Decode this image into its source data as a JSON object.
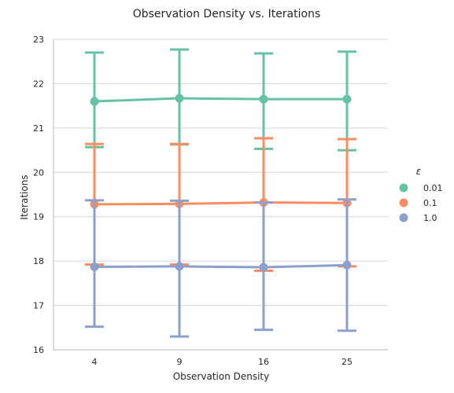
{
  "chart_data": {
    "type": "line",
    "title": "Observation Density vs. Iterations",
    "xlabel": "Observation Density",
    "ylabel": "Iterations",
    "categories": [
      "4",
      "9",
      "16",
      "25"
    ],
    "ylim": [
      16,
      23
    ],
    "yticks": [
      16,
      17,
      18,
      19,
      20,
      21,
      22,
      23
    ],
    "grid": "horizontal",
    "legend": {
      "title": "ε",
      "placement": "right"
    },
    "series": [
      {
        "name": "0.01",
        "color": "#66c2a5",
        "values": [
          21.6,
          21.67,
          21.65,
          21.65
        ],
        "err_low": [
          20.57,
          20.63,
          20.53,
          20.5
        ],
        "err_high": [
          22.7,
          22.77,
          22.68,
          22.72
        ]
      },
      {
        "name": "0.1",
        "color": "#fc8d62",
        "values": [
          19.28,
          19.29,
          19.32,
          19.31
        ],
        "err_low": [
          17.92,
          17.92,
          17.78,
          17.88
        ],
        "err_high": [
          20.64,
          20.64,
          20.77,
          20.75
        ]
      },
      {
        "name": "1.0",
        "color": "#8da0cb",
        "values": [
          17.87,
          17.88,
          17.86,
          17.91
        ],
        "err_low": [
          16.52,
          16.3,
          16.45,
          16.43
        ],
        "err_high": [
          19.37,
          19.36,
          19.32,
          19.39
        ]
      }
    ]
  }
}
